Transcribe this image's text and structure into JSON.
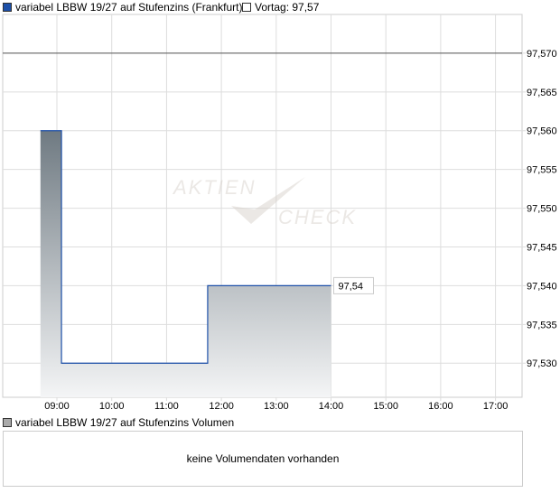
{
  "legend": {
    "series": "variabel LBBW 19/27 auf Stufenzins (Frankfurt)",
    "previous": "Vortag: 97,57",
    "series_color": "#1c4fa8"
  },
  "watermark": "AKTIEN CHECK",
  "chart_data": {
    "type": "area",
    "x_ticks": [
      "09:00",
      "10:00",
      "11:00",
      "12:00",
      "13:00",
      "14:00",
      "15:00",
      "16:00",
      "17:00"
    ],
    "y_ticks": [
      "97,570",
      "97,565",
      "97,560",
      "97,555",
      "97,550",
      "97,545",
      "97,540",
      "97,535",
      "97,530"
    ],
    "ylim": [
      97.5256,
      97.575
    ],
    "xlim": [
      "08:00",
      "17:30"
    ],
    "series": [
      {
        "name": "variabel LBBW 19/27 auf Stufenzins",
        "step": true,
        "points": [
          [
            "08:42",
            97.56
          ],
          [
            "09:05",
            97.53
          ],
          [
            "11:45",
            97.54
          ],
          [
            "14:00",
            97.54
          ]
        ]
      }
    ],
    "reference_line": {
      "label": "Vortag",
      "value": 97.57
    },
    "last_value_label": "97,54",
    "grid": true
  },
  "volume": {
    "label": "variabel LBBW 19/27 auf Stufenzins Volumen",
    "message": "keine Volumendaten vorhanden"
  }
}
